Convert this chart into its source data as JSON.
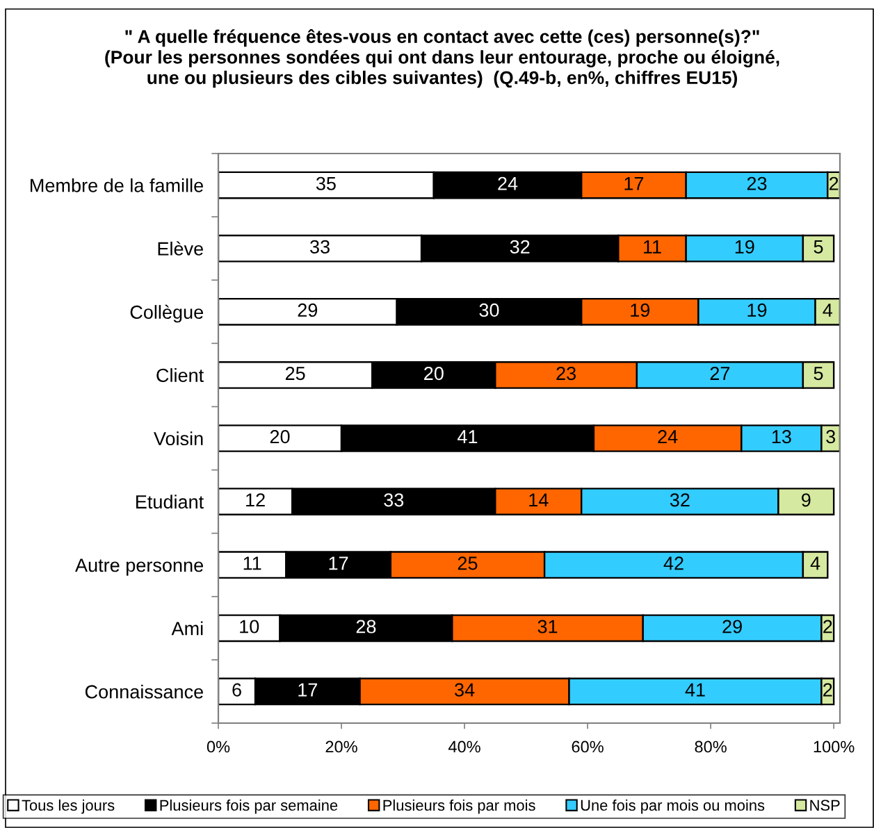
{
  "chart_data": {
    "type": "bar",
    "orientation": "horizontal",
    "stacked": true,
    "title": "\" A quelle fréquence êtes-vous en contact avec cette (ces) personne(s)?\"\n(Pour les personnes sondées qui ont dans leur entourage, proche ou éloigné,\nune ou plusieurs des cibles suivantes)  (Q.49-b, en%, chiffres EU15)",
    "categories": [
      "Membre de la famille",
      "Elève",
      "Collègue",
      "Client",
      "Voisin",
      "Etudiant",
      "Autre personne",
      "Ami",
      "Connaissance"
    ],
    "series": [
      {
        "name": "Tous les jours",
        "color": "#ffffff",
        "values": [
          35,
          33,
          29,
          25,
          20,
          12,
          11,
          10,
          6
        ]
      },
      {
        "name": "Plusieurs fois par semaine",
        "color": "#000000",
        "values": [
          24,
          32,
          30,
          20,
          41,
          33,
          17,
          28,
          17
        ]
      },
      {
        "name": "Plusieurs fois par mois",
        "color": "#ff6600",
        "values": [
          17,
          11,
          19,
          23,
          24,
          14,
          25,
          31,
          34
        ]
      },
      {
        "name": "Une fois par mois ou moins",
        "color": "#33ccff",
        "values": [
          23,
          19,
          19,
          27,
          13,
          32,
          42,
          29,
          41
        ]
      },
      {
        "name": "NSP",
        "color": "#d6e9a0",
        "values": [
          2,
          5,
          4,
          5,
          3,
          9,
          4,
          2,
          2
        ]
      }
    ],
    "xlim": [
      0,
      101
    ],
    "xticks": [
      {
        "value": 0,
        "label": "0%"
      },
      {
        "value": 20,
        "label": "20%"
      },
      {
        "value": 40,
        "label": "40%"
      },
      {
        "value": 60,
        "label": "60%"
      },
      {
        "value": 80,
        "label": "80%"
      },
      {
        "value": 100,
        "label": "100%"
      }
    ],
    "data_labels": true,
    "legend": "bottom",
    "grid": false
  }
}
